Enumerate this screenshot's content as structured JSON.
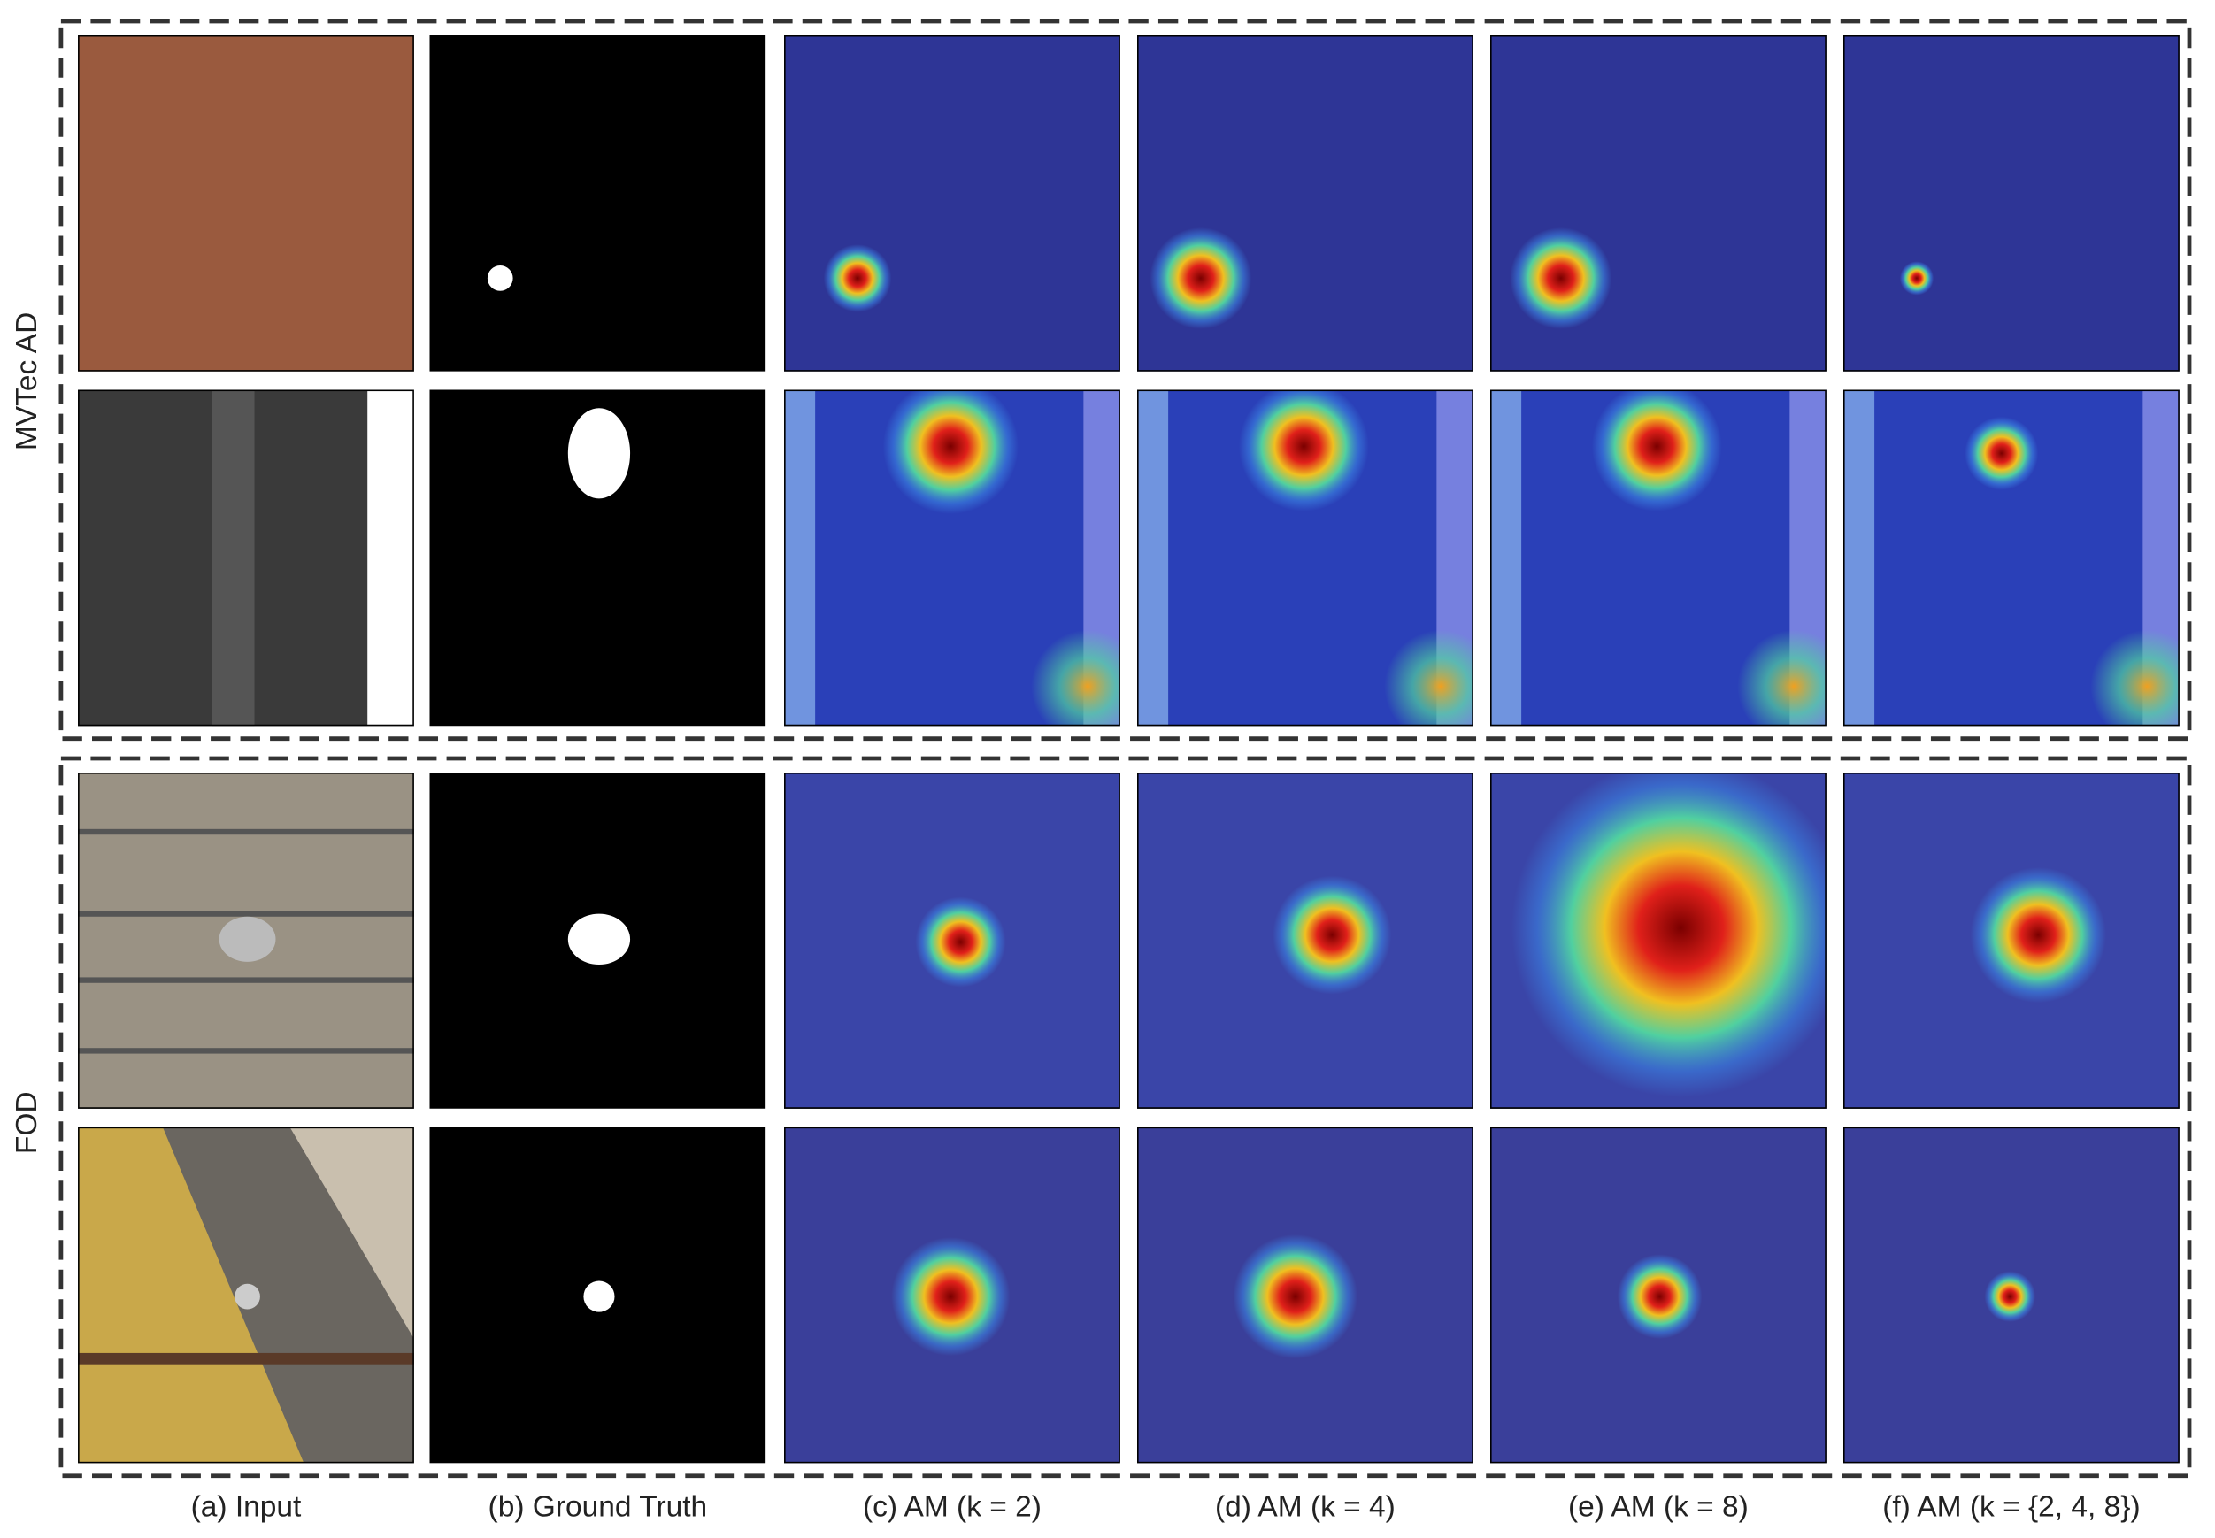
{
  "groups": [
    "MVTec AD",
    "FOD"
  ],
  "columns": [
    "(a) Input",
    "(b) Ground Truth",
    "(c) AM (k = 2)",
    "(d) AM (k = 4)",
    "(e) AM (k = 8)",
    "(f) AM (k = {2, 4, 8})"
  ]
}
